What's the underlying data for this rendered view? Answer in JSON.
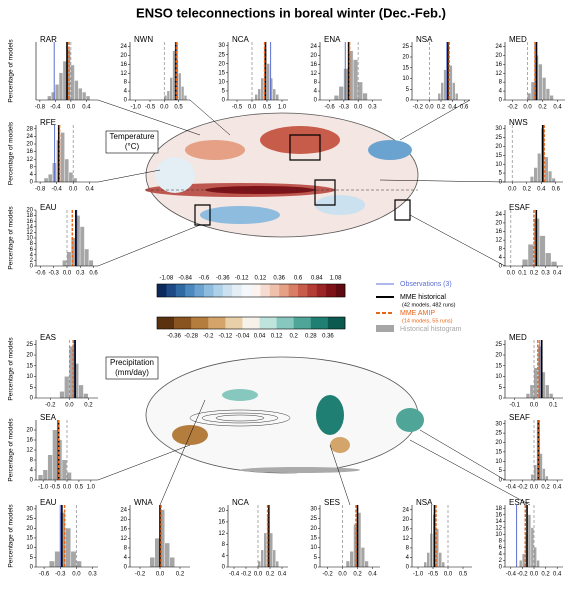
{
  "title": "ENSO teleconnections in boreal winter (Dec.-Feb.)",
  "styles": {
    "histogram": "#a6a6a6",
    "observations": "#5b6fd3",
    "mme_historical": "#000000",
    "mme_amip": "#e8661a"
  },
  "map_labels": {
    "temperature": "Temperature",
    "temperature_unit": "(°C)",
    "precipitation": "Precipitation",
    "precipitation_unit": "(mm/day)"
  },
  "legend": {
    "observations": "Observations (3)",
    "mme_historical": "MME historical",
    "mme_historical_note": "(42 models, 482 runs)",
    "mme_amip": "MME AMIP",
    "mme_amip_note": "(14 models, 55 runs)",
    "histogram": "Historical histogram"
  },
  "colorbars": [
    {
      "lim": [
        -1.2,
        1.2
      ],
      "labels": [
        -1.08,
        -0.84,
        -0.6,
        -0.36,
        -0.12,
        0.12,
        0.36,
        0.6,
        0.84,
        1.08
      ],
      "colors": [
        "#0b2a5b",
        "#1c4a84",
        "#2f6aa3",
        "#4a88bd",
        "#6aa3cf",
        "#8dbcde",
        "#aed0e8",
        "#cbe1ef",
        "#e3eef5",
        "#f5f8fa",
        "#fbf3ef",
        "#f6dcd0",
        "#efc0ab",
        "#e6a086",
        "#d97e66",
        "#c85c4a",
        "#b33d35",
        "#9a2426",
        "#7d1219",
        "#5e0a10"
      ]
    },
    {
      "lim": [
        -0.44,
        0.44
      ],
      "labels": [
        -0.36,
        -0.28,
        -0.2,
        -0.12,
        -0.04,
        0.04,
        0.12,
        0.2,
        0.28,
        0.36
      ],
      "colors": [
        "#5a3210",
        "#8a5420",
        "#b47d3e",
        "#d3a56b",
        "#ead0a8",
        "#f6f2ea",
        "#bfe3dd",
        "#86c8bd",
        "#4ea598",
        "#1f7f72",
        "#0b5a4f"
      ]
    }
  ],
  "chart_data": [
    {
      "type": "histogram",
      "title": "RAR",
      "ylabel": "Percentage of models",
      "xlim": [
        -0.9,
        0.7
      ],
      "ylim": [
        0,
        30
      ],
      "xticks": [
        -0.8,
        -0.4,
        {
          "value": 0,
          "label": "0.0"
        },
        0.4
      ],
      "bins": [
        -0.6,
        -0.5,
        -0.4,
        -0.3,
        -0.2,
        -0.1,
        0,
        0.1,
        0.2,
        0.3,
        0.4,
        0.5
      ],
      "values": [
        2,
        4,
        8,
        14,
        20,
        26,
        18,
        10,
        6,
        4,
        2
      ],
      "observations": -0.43,
      "mme_historical": -0.1,
      "mme_amip": -0.05
    },
    {
      "type": "histogram",
      "title": "NWN",
      "xlim": [
        -1.2,
        0.9
      ],
      "ylim": [
        0,
        26
      ],
      "yticks": [
        0,
        4,
        8,
        12,
        16,
        20,
        24
      ],
      "xticks": [
        {
          "value": -1,
          "label": "-1.0"
        },
        -0.5,
        {
          "value": 0,
          "label": "0.0"
        },
        0.5
      ],
      "bins": [
        0,
        0.1,
        0.2,
        0.3,
        0.4,
        0.5,
        0.6,
        0.7,
        0.8
      ],
      "values": [
        2,
        4,
        10,
        22,
        18,
        12,
        6,
        2
      ],
      "observations": 0.45,
      "mme_historical": 0.4,
      "mme_amip": 0.42
    },
    {
      "type": "histogram",
      "title": "NCA",
      "xlim": [
        -0.8,
        1.2
      ],
      "ylim": [
        0,
        32
      ],
      "yticks": [
        0,
        5,
        10,
        15,
        20,
        25,
        30
      ],
      "xticks": [
        -0.5,
        {
          "value": 0,
          "label": "0.0"
        },
        0.5,
        {
          "value": 1,
          "label": "1.0"
        }
      ],
      "bins": [
        0.1,
        0.2,
        0.3,
        0.4,
        0.5,
        0.6,
        0.7,
        0.8,
        0.9
      ],
      "values": [
        3,
        6,
        12,
        28,
        20,
        12,
        6,
        3
      ],
      "observations": 0.62,
      "mme_historical": 0.45,
      "mme_amip": 0.42
    },
    {
      "type": "histogram",
      "title": "ENA",
      "xlim": [
        -0.8,
        0.5
      ],
      "ylim": [
        0,
        26
      ],
      "yticks": [
        0,
        4,
        8,
        12,
        16,
        20,
        24
      ],
      "xticks": [
        -0.6,
        -0.3,
        {
          "value": 0,
          "label": "0.0"
        },
        0.3
      ],
      "bins": [
        -0.5,
        -0.4,
        -0.3,
        -0.2,
        -0.1,
        0,
        0.1,
        0.2
      ],
      "values": [
        2,
        6,
        14,
        22,
        18,
        8,
        3
      ],
      "observations": -0.27,
      "mme_historical": -0.2,
      "mme_amip": -0.18
    },
    {
      "type": "histogram",
      "title": "NSA",
      "xlim": [
        -0.3,
        0.7
      ],
      "ylim": [
        0,
        27
      ],
      "yticks": [
        0,
        5,
        10,
        15,
        20,
        25
      ],
      "xticks": [
        -0.2,
        {
          "value": 0,
          "label": "0.0"
        },
        0.2,
        0.4,
        0.6
      ],
      "bins": [
        0.15,
        0.2,
        0.25,
        0.3,
        0.35,
        0.4,
        0.45,
        0.5
      ],
      "values": [
        3,
        8,
        14,
        24,
        16,
        8,
        3
      ],
      "observations": 0.3,
      "mme_historical": 0.32,
      "mme_amip": 0.34
    },
    {
      "type": "histogram",
      "title": "MED",
      "xlim": [
        -0.3,
        0.5
      ],
      "ylim": [
        0,
        26
      ],
      "yticks": [
        0,
        4,
        8,
        12,
        16,
        20,
        24
      ],
      "xticks": [
        -0.2,
        {
          "value": 0,
          "label": "0.0"
        },
        0.2,
        0.4
      ],
      "bins": [
        0,
        0.05,
        0.1,
        0.15,
        0.2,
        0.25,
        0.3,
        0.35
      ],
      "values": [
        3,
        8,
        20,
        16,
        10,
        5,
        2
      ],
      "observations": 0.1,
      "mme_historical": 0.12,
      "mme_amip": 0.1
    },
    {
      "type": "histogram",
      "title": "RFE",
      "ylabel": "Percentage of models",
      "xlim": [
        -0.9,
        0.6
      ],
      "ylim": [
        0,
        30
      ],
      "yticks": [
        0,
        4,
        8,
        12,
        16,
        20,
        24,
        28
      ],
      "xticks": [
        -0.8,
        -0.4,
        {
          "value": 0,
          "label": "0.0"
        },
        0.4
      ],
      "bins": [
        -0.7,
        -0.6,
        -0.5,
        -0.4,
        -0.3,
        -0.2,
        -0.1,
        0,
        0.1
      ],
      "values": [
        2,
        4,
        10,
        22,
        26,
        12,
        5,
        2
      ],
      "observations": -0.45,
      "mme_historical": -0.35,
      "mme_amip": -0.33
    },
    {
      "type": "histogram",
      "title": "NWS",
      "xlim": [
        -0.1,
        0.7
      ],
      "ylim": [
        0,
        32
      ],
      "yticks": [
        0,
        5,
        10,
        15,
        20,
        25,
        30
      ],
      "xticks": [
        {
          "value": 0,
          "label": "0.0"
        },
        0.2,
        0.4,
        0.6
      ],
      "bins": [
        0.25,
        0.3,
        0.35,
        0.4,
        0.45,
        0.5,
        0.55,
        0.6
      ],
      "values": [
        3,
        8,
        16,
        30,
        14,
        6,
        2
      ],
      "observations": 0.42,
      "mme_historical": 0.42,
      "mme_amip": 0.44
    },
    {
      "type": "histogram",
      "title": "EAU",
      "ylabel": "Percentage of models",
      "xlim": [
        -0.7,
        0.7
      ],
      "ylim": [
        0,
        20
      ],
      "yticks": [
        0,
        2,
        4,
        6,
        8,
        10,
        12,
        14,
        16,
        18,
        20
      ],
      "xticks": [
        -0.6,
        -0.3,
        {
          "value": 0,
          "label": "0.0"
        },
        0.3,
        0.6
      ],
      "bins": [
        -0.1,
        0,
        0.1,
        0.2,
        0.3,
        0.4,
        0.5,
        0.6
      ],
      "values": [
        2,
        5,
        10,
        18,
        14,
        6,
        2
      ],
      "observations": 0.22,
      "mme_historical": 0.2,
      "mme_amip": 0.12
    },
    {
      "type": "histogram",
      "title": "ESAF",
      "xlim": [
        -0.05,
        0.45
      ],
      "ylim": [
        0,
        26
      ],
      "yticks": [
        0,
        4,
        8,
        12,
        16,
        20,
        24
      ],
      "xticks": [
        {
          "value": 0,
          "label": "0.0"
        },
        0.1,
        0.2,
        0.3,
        0.4
      ],
      "bins": [
        0.1,
        0.15,
        0.2,
        0.25,
        0.3,
        0.35,
        0.4
      ],
      "values": [
        3,
        10,
        22,
        14,
        6,
        2
      ],
      "observations": 0.22,
      "mme_historical": 0.22,
      "mme_amip": 0.2
    },
    {
      "type": "histogram",
      "title": "EAS",
      "ylabel": "Percentage of models",
      "xlim": [
        -0.35,
        0.3
      ],
      "ylim": [
        0,
        27
      ],
      "yticks": [
        0,
        5,
        10,
        15,
        20,
        25
      ],
      "xticks": [
        -0.2,
        {
          "value": 0,
          "label": "0.0"
        },
        0.2
      ],
      "bins": [
        -0.1,
        -0.05,
        0,
        0.05,
        0.1,
        0.15,
        0.2
      ],
      "values": [
        3,
        10,
        24,
        16,
        6,
        2
      ],
      "observations": 0.05,
      "mme_historical": 0.06,
      "mme_amip": 0.04
    },
    {
      "type": "histogram",
      "title": "MED",
      "xlim": [
        -0.15,
        0.15
      ],
      "ylim": [
        0,
        27
      ],
      "yticks": [
        0,
        5,
        10,
        15,
        20,
        25
      ],
      "xticks": [
        -0.1,
        {
          "value": 0,
          "label": "0.0"
        },
        0.1
      ],
      "bins": [
        -0.04,
        -0.02,
        0,
        0.02,
        0.04,
        0.06,
        0.08,
        0.1
      ],
      "values": [
        2,
        6,
        14,
        24,
        12,
        6,
        2
      ],
      "observations": 0.03,
      "mme_historical": 0.04,
      "mme_amip": 0.02
    },
    {
      "type": "histogram",
      "title": "SEA",
      "ylabel": "Percentage of models",
      "xlim": [
        -1.3,
        1.3
      ],
      "ylim": [
        0,
        24
      ],
      "yticks": [
        0,
        4,
        8,
        12,
        16,
        20
      ],
      "xticks": [
        {
          "value": -1,
          "label": "-1.0"
        },
        -0.5,
        {
          "value": 0,
          "label": "0.0"
        },
        0.5,
        {
          "value": 1,
          "label": "1.0"
        }
      ],
      "bins": [
        -1.2,
        -1,
        -0.8,
        -0.6,
        -0.4,
        -0.2,
        0,
        0.2
      ],
      "values": [
        2,
        4,
        10,
        20,
        16,
        8,
        3
      ],
      "observations": -0.4,
      "mme_historical": -0.35,
      "mme_amip": -0.35
    },
    {
      "type": "histogram",
      "title": "SEAF",
      "xlim": [
        -0.5,
        0.5
      ],
      "ylim": [
        0,
        32
      ],
      "yticks": [
        0,
        5,
        10,
        15,
        20,
        25,
        30
      ],
      "xticks": [
        -0.4,
        -0.2,
        {
          "value": 0,
          "label": "0.0"
        },
        0.2,
        0.4
      ],
      "bins": [
        -0.05,
        0,
        0.05,
        0.1,
        0.15,
        0.2,
        0.25
      ],
      "values": [
        3,
        8,
        28,
        14,
        6,
        2
      ],
      "observations": 0.06,
      "mme_historical": 0.08,
      "mme_amip": 0.07
    },
    {
      "type": "histogram",
      "title": "EAU",
      "ylabel": "Percentage of models",
      "xlim": [
        -0.75,
        0.4
      ],
      "ylim": [
        0,
        32
      ],
      "yticks": [
        0,
        5,
        10,
        15,
        20,
        25,
        30
      ],
      "xticks": [
        -0.6,
        -0.3,
        {
          "value": 0,
          "label": "0.0"
        },
        0.3
      ],
      "bins": [
        -0.5,
        -0.4,
        -0.3,
        -0.2,
        -0.1,
        0,
        0.1
      ],
      "values": [
        3,
        8,
        28,
        20,
        8,
        3
      ],
      "observations": -0.3,
      "mme_historical": -0.27,
      "mme_amip": -0.22
    },
    {
      "type": "histogram",
      "title": "WNA",
      "xlim": [
        -0.3,
        0.3
      ],
      "ylim": [
        0,
        26
      ],
      "yticks": [
        0,
        4,
        8,
        12,
        16,
        20,
        24
      ],
      "xticks": [
        -0.2,
        {
          "value": 0,
          "label": "0.0"
        },
        0.2
      ],
      "bins": [
        -0.1,
        -0.05,
        0,
        0.05,
        0.1,
        0.15
      ],
      "values": [
        4,
        12,
        24,
        10,
        4
      ],
      "observations": 0,
      "mme_historical": 0,
      "mme_amip": 0.01
    },
    {
      "type": "histogram",
      "title": "NCA",
      "xlim": [
        -0.5,
        0.5
      ],
      "ylim": [
        0,
        22
      ],
      "yticks": [
        0,
        4,
        8,
        12,
        16,
        20
      ],
      "xticks": [
        -0.4,
        -0.2,
        {
          "value": 0,
          "label": "0.0"
        },
        0.2,
        0.4
      ],
      "bins": [
        0,
        0.05,
        0.1,
        0.15,
        0.2,
        0.25,
        0.3,
        0.35
      ],
      "values": [
        2,
        6,
        12,
        18,
        12,
        6,
        2
      ],
      "observations": 0.18,
      "mme_historical": 0.18,
      "mme_amip": 0.16
    },
    {
      "type": "histogram",
      "title": "SES",
      "xlim": [
        -0.3,
        0.5
      ],
      "ylim": [
        0,
        32
      ],
      "yticks": [
        0,
        5,
        10,
        15,
        20,
        25,
        30
      ],
      "xticks": [
        -0.2,
        {
          "value": 0,
          "label": "0.0"
        },
        0.2,
        0.4
      ],
      "bins": [
        0.05,
        0.1,
        0.15,
        0.2,
        0.25,
        0.3,
        0.35
      ],
      "values": [
        3,
        8,
        22,
        28,
        10,
        3
      ],
      "observations": 0.2,
      "mme_historical": 0.2,
      "mme_amip": 0.18
    },
    {
      "type": "histogram",
      "title": "NSA",
      "xlim": [
        -1.2,
        0.8
      ],
      "ylim": [
        0,
        26
      ],
      "yticks": [
        0,
        4,
        8,
        12,
        16,
        20,
        24
      ],
      "xticks": [
        {
          "value": -1,
          "label": "-1.0"
        },
        -0.5,
        {
          "value": 0,
          "label": "0.0"
        },
        0.5
      ],
      "bins": [
        -0.8,
        -0.7,
        -0.6,
        -0.5,
        -0.4,
        -0.3,
        -0.2,
        -0.1
      ],
      "values": [
        2,
        6,
        14,
        22,
        16,
        6,
        2
      ],
      "observations": -0.55,
      "mme_historical": -0.45,
      "mme_amip": -0.4
    },
    {
      "type": "histogram",
      "title": "ESAF",
      "xlim": [
        -0.5,
        0.5
      ],
      "ylim": [
        0,
        19
      ],
      "yticks": [
        0,
        2,
        4,
        6,
        8,
        10,
        12,
        14,
        16,
        18
      ],
      "xticks": [
        -0.4,
        -0.2,
        {
          "value": 0,
          "label": "0.0"
        },
        0.2,
        0.4
      ],
      "bins": [
        -0.25,
        -0.2,
        -0.15,
        -0.1,
        -0.05,
        0,
        0.05,
        0.1
      ],
      "values": [
        2,
        4,
        10,
        16,
        12,
        6,
        2
      ],
      "observations": -0.3,
      "mme_historical": -0.12,
      "mme_amip": -0.15
    }
  ]
}
